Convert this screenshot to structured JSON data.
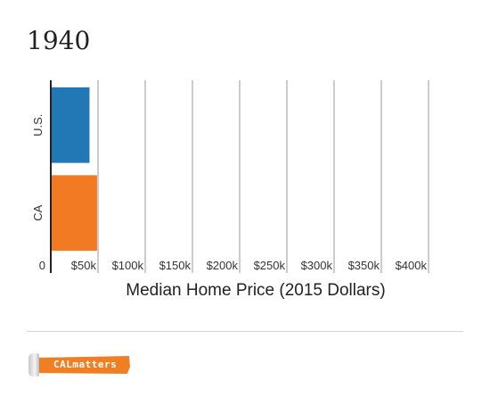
{
  "chart_data": {
    "type": "bar",
    "orientation": "horizontal",
    "title": "1940",
    "categories": [
      "U.S.",
      "CA"
    ],
    "values": [
      41000,
      49000
    ],
    "colors": [
      "#2278b5",
      "#f27a22"
    ],
    "xlabel": "Median Home Price (2015 Dollars)",
    "ylabel": "",
    "xlim": [
      0,
      400000
    ],
    "xticks": [
      0,
      50000,
      100000,
      150000,
      200000,
      250000,
      300000,
      350000,
      400000
    ],
    "xtick_labels": [
      "0",
      "$50k",
      "$100k",
      "$150k",
      "$200k",
      "$250k",
      "$300k",
      "$350k",
      "$400k"
    ],
    "grid": true
  },
  "footer": {
    "logo_text": "CALmatters"
  }
}
